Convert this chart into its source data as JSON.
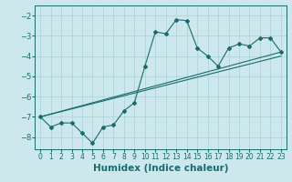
{
  "title": "",
  "xlabel": "Humidex (Indice chaleur)",
  "ylabel": "",
  "xlim": [
    -0.5,
    23.5
  ],
  "ylim": [
    -8.6,
    -1.5
  ],
  "yticks": [
    -8,
    -7,
    -6,
    -5,
    -4,
    -3,
    -2
  ],
  "xticks": [
    0,
    1,
    2,
    3,
    4,
    5,
    6,
    7,
    8,
    9,
    10,
    11,
    12,
    13,
    14,
    15,
    16,
    17,
    18,
    19,
    20,
    21,
    22,
    23
  ],
  "background_color": "#cce8ed",
  "grid_color": "#b0d4da",
  "line_color": "#1a6b6b",
  "series1_x": [
    0,
    1,
    2,
    3,
    4,
    5,
    6,
    7,
    8,
    9,
    10,
    11,
    12,
    13,
    14,
    15,
    16,
    17,
    18,
    19,
    20,
    21,
    22,
    23
  ],
  "series1_y": [
    -7.0,
    -7.5,
    -7.3,
    -7.3,
    -7.8,
    -8.3,
    -7.5,
    -7.4,
    -6.7,
    -6.3,
    -4.5,
    -2.8,
    -2.9,
    -2.2,
    -2.25,
    -3.6,
    -4.0,
    -4.5,
    -3.6,
    -3.4,
    -3.5,
    -3.1,
    -3.1,
    -3.8
  ],
  "series2_x": [
    0,
    23
  ],
  "series2_y": [
    -7.0,
    -3.8
  ],
  "series3_x": [
    0,
    23
  ],
  "series3_y": [
    -7.0,
    -4.0
  ],
  "tick_fontsize": 5.5,
  "label_fontsize": 7.5
}
